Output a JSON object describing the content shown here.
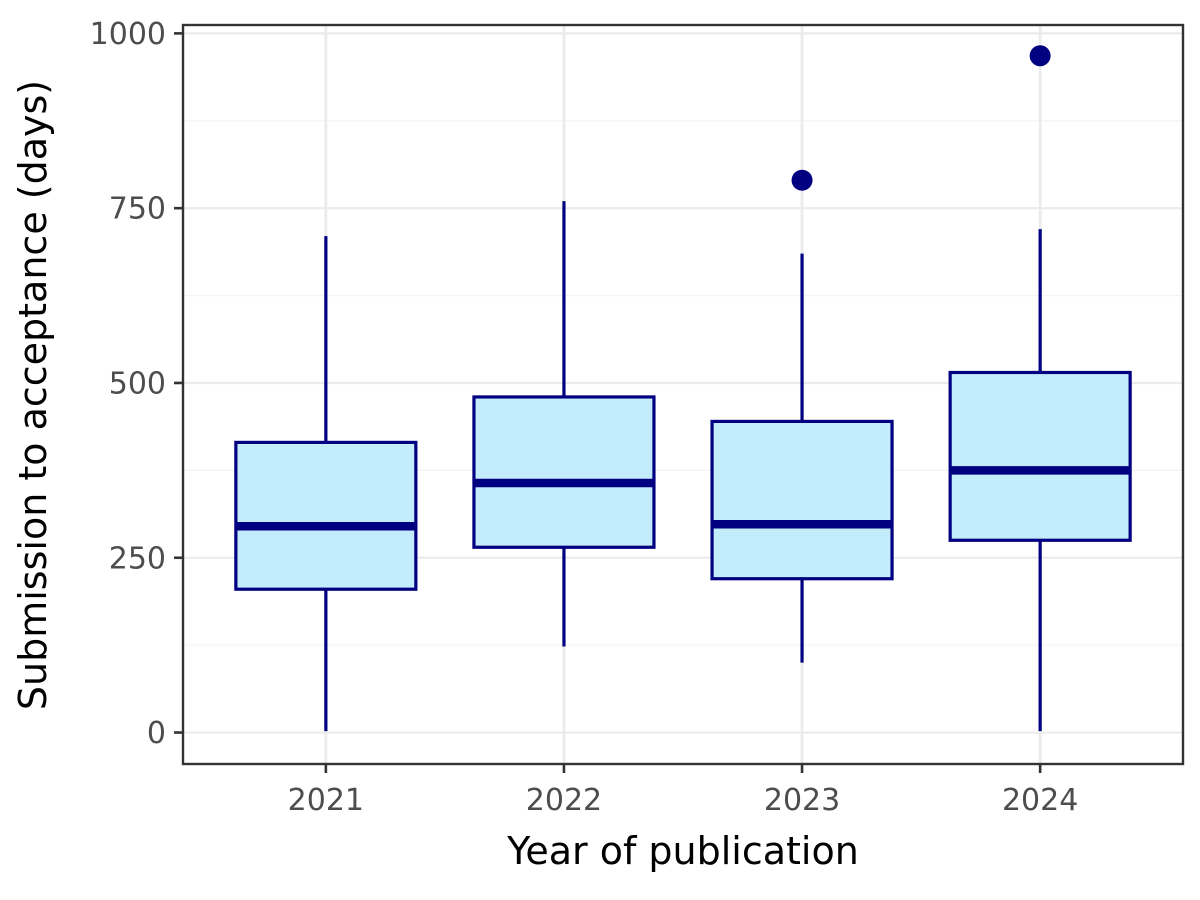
{
  "figure": {
    "kind": "boxplot-figure"
  },
  "chart_data": {
    "type": "boxplot",
    "title": "",
    "xlabel": "Year of publication",
    "ylabel": "Submission to acceptance (days)",
    "categories": [
      "2021",
      "2022",
      "2023",
      "2024"
    ],
    "series": [
      {
        "category": "2021",
        "whisker_low": 2,
        "q1": 205,
        "median": 295,
        "q3": 415,
        "whisker_high": 710,
        "outliers": []
      },
      {
        "category": "2022",
        "whisker_low": 123,
        "q1": 265,
        "median": 357,
        "q3": 480,
        "whisker_high": 760,
        "outliers": []
      },
      {
        "category": "2023",
        "whisker_low": 100,
        "q1": 220,
        "median": 298,
        "q3": 445,
        "whisker_high": 685,
        "outliers": [
          790
        ]
      },
      {
        "category": "2024",
        "whisker_low": 2,
        "q1": 275,
        "median": 375,
        "q3": 515,
        "whisker_high": 720,
        "outliers": [
          968
        ]
      }
    ],
    "y_ticks": [
      0,
      250,
      500,
      750,
      1000
    ],
    "y_minor_ticks": [
      125,
      375,
      625,
      875
    ],
    "ylim": [
      -45,
      1012
    ],
    "grid": true,
    "legend": false,
    "colors": {
      "box_fill": "#C3EDFC",
      "box_stroke": "#000080",
      "median": "#000080",
      "whisker": "#000080",
      "outlier": "#000080",
      "grid_major": "#EBEBEB",
      "grid_minor": "#F4F4F4",
      "panel_border": "#333333",
      "tick_mark": "#333333",
      "tick_label": "#4D4D4D",
      "axis_title": "#000000",
      "background": "#FFFFFF"
    }
  }
}
